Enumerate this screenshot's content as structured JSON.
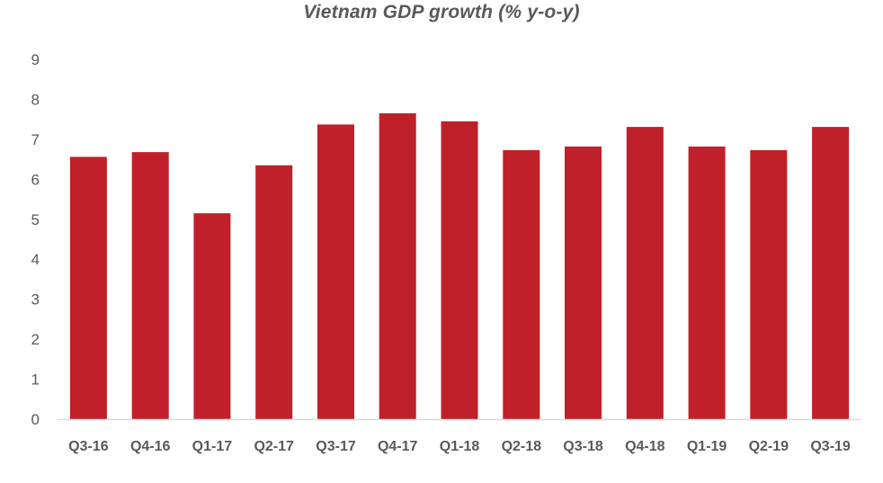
{
  "chart_data": {
    "type": "bar",
    "title": "Vietnam GDP growth (% y-o-y)",
    "xlabel": "",
    "ylabel": "",
    "categories": [
      "Q3-16",
      "Q4-16",
      "Q1-17",
      "Q2-17",
      "Q3-17",
      "Q4-17",
      "Q1-18",
      "Q2-18",
      "Q3-18",
      "Q4-18",
      "Q1-19",
      "Q2-19",
      "Q3-19"
    ],
    "values": [
      6.56,
      6.68,
      5.15,
      6.35,
      7.37,
      7.65,
      7.45,
      6.73,
      6.82,
      7.31,
      6.82,
      6.73,
      7.31
    ],
    "ylim": [
      0,
      9
    ],
    "yticks": [
      0,
      1,
      2,
      3,
      4,
      5,
      6,
      7,
      8,
      9
    ],
    "grid": false,
    "legend": "none",
    "bar_color": "#C0202A",
    "axis_color": "#D9D9D9",
    "text_color": "#595959"
  }
}
